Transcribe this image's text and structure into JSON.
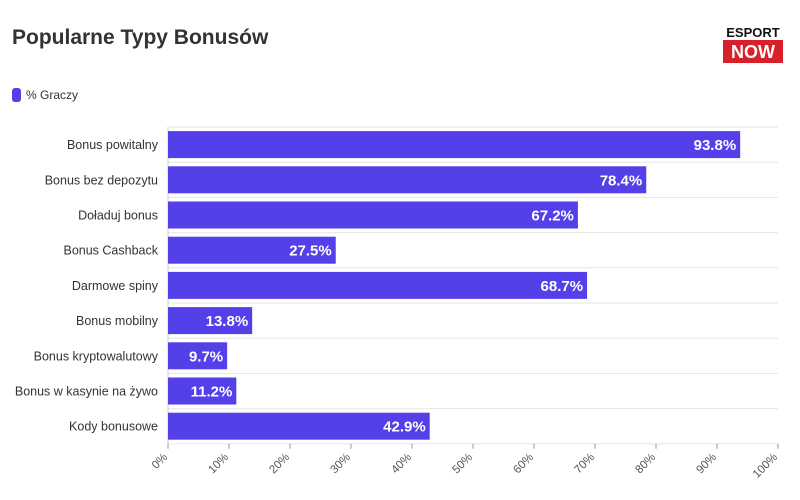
{
  "title": "Popularne Typy Bonusów",
  "logo": {
    "top": "ESPORT",
    "bottom": "NOW"
  },
  "legend": {
    "label": "% Graczy"
  },
  "colors": {
    "bar": "#5340e8",
    "grid": "#e6e6e6",
    "logo_red": "#d8202a"
  },
  "chart_data": {
    "type": "bar",
    "orientation": "horizontal",
    "title": "Popularne Typy Bonusów",
    "categories": [
      "Bonus powitalny",
      "Bonus bez depozytu",
      "Doładuj bonus",
      "Bonus Cashback",
      "Darmowe spiny",
      "Bonus mobilny",
      "Bonus kryptowalutowy",
      "Bonus w kasynie na żywo",
      "Kody bonusowe"
    ],
    "series": [
      {
        "name": "% Graczy",
        "values": [
          93.8,
          78.4,
          67.2,
          27.5,
          68.7,
          13.8,
          9.7,
          11.2,
          42.9
        ]
      }
    ],
    "value_labels": [
      "93.8%",
      "78.4%",
      "67.2%",
      "27.5%",
      "68.7%",
      "13.8%",
      "9.7%",
      "11.2%",
      "42.9%"
    ],
    "xlim": [
      0,
      100
    ],
    "x_ticks": [
      "0%",
      "10%",
      "20%",
      "30%",
      "40%",
      "50%",
      "60%",
      "70%",
      "80%",
      "90%",
      "100%"
    ],
    "grid": true,
    "legend_position": "top-left"
  }
}
